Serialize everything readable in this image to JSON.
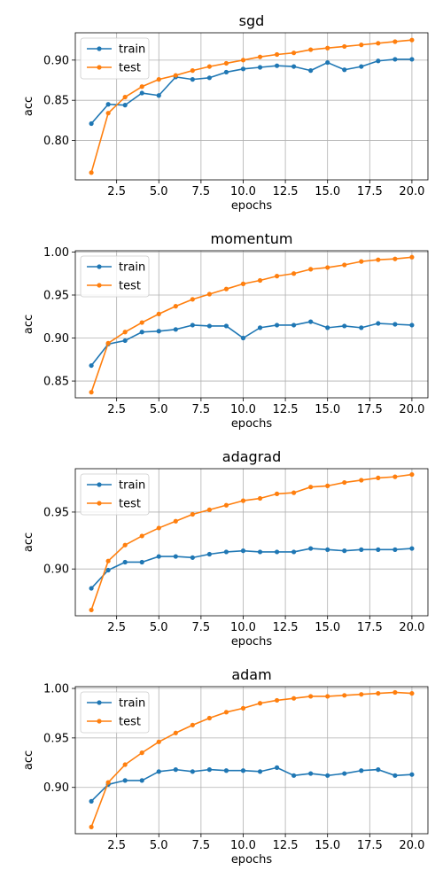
{
  "colors": {
    "train": "#1f77b4",
    "test": "#ff7f0e",
    "grid": "#b0b0b0",
    "axes": "#000000"
  },
  "chart_data": [
    {
      "type": "line",
      "title": "sgd",
      "xlabel": "epochs",
      "ylabel": "acc",
      "grid": true,
      "legend": "upper left",
      "xlim": [
        0.05,
        20.95
      ],
      "ylim": [
        0.751,
        0.934
      ],
      "xticks": [
        2.5,
        5.0,
        7.5,
        10.0,
        12.5,
        15.0,
        17.5,
        20.0
      ],
      "xtick_labels": [
        "2.5",
        "5.0",
        "7.5",
        "10.0",
        "12.5",
        "15.0",
        "17.5",
        "20.0"
      ],
      "yticks": [
        0.8,
        0.85,
        0.9
      ],
      "ytick_labels": [
        "0.80",
        "0.85",
        "0.90"
      ],
      "x": [
        1,
        2,
        3,
        4,
        5,
        6,
        7,
        8,
        9,
        10,
        11,
        12,
        13,
        14,
        15,
        16,
        17,
        18,
        19,
        20
      ],
      "series": [
        {
          "name": "train",
          "values": [
            0.821,
            0.845,
            0.844,
            0.859,
            0.856,
            0.879,
            0.876,
            0.878,
            0.885,
            0.889,
            0.891,
            0.893,
            0.892,
            0.887,
            0.897,
            0.888,
            0.892,
            0.899,
            0.901,
            0.901
          ]
        },
        {
          "name": "test",
          "values": [
            0.76,
            0.834,
            0.854,
            0.867,
            0.876,
            0.881,
            0.887,
            0.892,
            0.896,
            0.9,
            0.904,
            0.907,
            0.909,
            0.913,
            0.915,
            0.917,
            0.919,
            0.921,
            0.923,
            0.925
          ]
        }
      ]
    },
    {
      "type": "line",
      "title": "momentum",
      "xlabel": "epochs",
      "ylabel": "acc",
      "grid": true,
      "legend": "upper left",
      "xlim": [
        0.05,
        20.95
      ],
      "ylim": [
        0.8305,
        1.0015
      ],
      "xticks": [
        2.5,
        5.0,
        7.5,
        10.0,
        12.5,
        15.0,
        17.5,
        20.0
      ],
      "xtick_labels": [
        "2.5",
        "5.0",
        "7.5",
        "10.0",
        "12.5",
        "15.0",
        "17.5",
        "20.0"
      ],
      "yticks": [
        0.85,
        0.9,
        0.95,
        1.0
      ],
      "ytick_labels": [
        "0.85",
        "0.90",
        "0.95",
        "1.00"
      ],
      "x": [
        1,
        2,
        3,
        4,
        5,
        6,
        7,
        8,
        9,
        10,
        11,
        12,
        13,
        14,
        15,
        16,
        17,
        18,
        19,
        20
      ],
      "series": [
        {
          "name": "train",
          "values": [
            0.868,
            0.893,
            0.897,
            0.907,
            0.908,
            0.91,
            0.915,
            0.914,
            0.914,
            0.9,
            0.912,
            0.915,
            0.915,
            0.919,
            0.912,
            0.914,
            0.912,
            0.917,
            0.916,
            0.915
          ]
        },
        {
          "name": "test",
          "values": [
            0.837,
            0.894,
            0.907,
            0.918,
            0.928,
            0.937,
            0.945,
            0.951,
            0.957,
            0.963,
            0.967,
            0.972,
            0.975,
            0.98,
            0.982,
            0.985,
            0.989,
            0.991,
            0.992,
            0.994
          ]
        }
      ]
    },
    {
      "type": "line",
      "title": "adagrad",
      "xlabel": "epochs",
      "ylabel": "acc",
      "grid": true,
      "legend": "upper left",
      "xlim": [
        0.05,
        20.95
      ],
      "ylim": [
        0.8589,
        0.9881
      ],
      "xticks": [
        2.5,
        5.0,
        7.5,
        10.0,
        12.5,
        15.0,
        17.5,
        20.0
      ],
      "xtick_labels": [
        "2.5",
        "5.0",
        "7.5",
        "10.0",
        "12.5",
        "15.0",
        "17.5",
        "20.0"
      ],
      "yticks": [
        0.9,
        0.95
      ],
      "ytick_labels": [
        "0.90",
        "0.95"
      ],
      "x": [
        1,
        2,
        3,
        4,
        5,
        6,
        7,
        8,
        9,
        10,
        11,
        12,
        13,
        14,
        15,
        16,
        17,
        18,
        19,
        20
      ],
      "series": [
        {
          "name": "train",
          "values": [
            0.883,
            0.899,
            0.906,
            0.906,
            0.911,
            0.911,
            0.91,
            0.913,
            0.915,
            0.916,
            0.915,
            0.915,
            0.915,
            0.918,
            0.917,
            0.916,
            0.917,
            0.917,
            0.917,
            0.918
          ]
        },
        {
          "name": "test",
          "values": [
            0.864,
            0.907,
            0.921,
            0.929,
            0.936,
            0.942,
            0.948,
            0.952,
            0.956,
            0.96,
            0.962,
            0.966,
            0.967,
            0.972,
            0.973,
            0.976,
            0.978,
            0.98,
            0.981,
            0.983
          ]
        }
      ]
    },
    {
      "type": "line",
      "title": "adam",
      "xlabel": "epochs",
      "ylabel": "acc",
      "grid": true,
      "legend": "upper left",
      "xlim": [
        0.05,
        20.95
      ],
      "ylim": [
        0.8532,
        1.0018
      ],
      "xticks": [
        2.5,
        5.0,
        7.5,
        10.0,
        12.5,
        15.0,
        17.5,
        20.0
      ],
      "xtick_labels": [
        "2.5",
        "5.0",
        "7.5",
        "10.0",
        "12.5",
        "15.0",
        "17.5",
        "20.0"
      ],
      "yticks": [
        0.9,
        0.95,
        1.0
      ],
      "ytick_labels": [
        "0.90",
        "0.95",
        "1.00"
      ],
      "x": [
        1,
        2,
        3,
        4,
        5,
        6,
        7,
        8,
        9,
        10,
        11,
        12,
        13,
        14,
        15,
        16,
        17,
        18,
        19,
        20
      ],
      "series": [
        {
          "name": "train",
          "values": [
            0.886,
            0.903,
            0.907,
            0.907,
            0.916,
            0.918,
            0.916,
            0.918,
            0.917,
            0.917,
            0.916,
            0.92,
            0.912,
            0.914,
            0.912,
            0.914,
            0.917,
            0.918,
            0.912,
            0.913
          ]
        },
        {
          "name": "test",
          "values": [
            0.86,
            0.905,
            0.923,
            0.935,
            0.946,
            0.955,
            0.963,
            0.97,
            0.976,
            0.98,
            0.985,
            0.988,
            0.99,
            0.992,
            0.992,
            0.993,
            0.994,
            0.995,
            0.996,
            0.995
          ]
        }
      ]
    }
  ]
}
